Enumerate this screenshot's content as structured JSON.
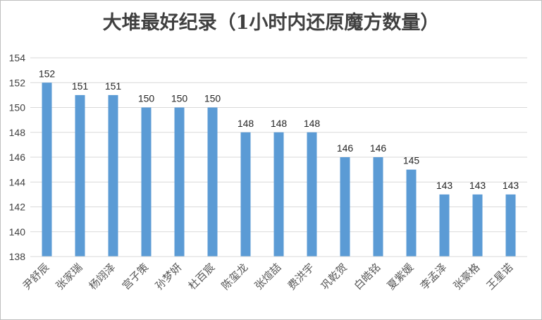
{
  "chart_data": {
    "type": "bar",
    "title": "大堆最好纪录（1小时内还原魔方数量）",
    "xlabel": "",
    "ylabel": "",
    "ylim": [
      138,
      154
    ],
    "yticks": [
      138,
      140,
      142,
      144,
      146,
      148,
      150,
      152,
      154
    ],
    "grid": true,
    "legend": "none",
    "bar_color": "#5b9bd5",
    "categories": [
      "尹舒辰",
      "张家瑞",
      "杨翊泽",
      "宫子策",
      "孙梦妍",
      "杜百宸",
      "陈玺龙",
      "张煊喆",
      "费洪宇",
      "巩乾贺",
      "白皓铭",
      "夏紫媛",
      "李孟泽",
      "张豪格",
      "王星诺"
    ],
    "values": [
      152,
      151,
      151,
      150,
      150,
      150,
      148,
      148,
      148,
      146,
      146,
      145,
      143,
      143,
      143
    ]
  }
}
